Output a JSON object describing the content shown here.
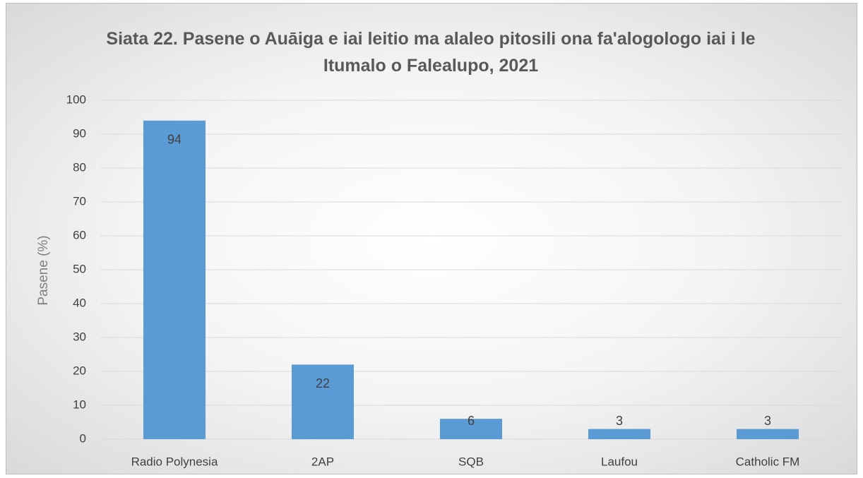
{
  "chart_data": {
    "type": "bar",
    "title": "Siata 22. Pasene o Auāiga e iai leitio ma alaleo pitosili ona fa'alogologo iai i le Itumalo o Falealupo, 2021",
    "y_axis_label": "Pasene (%)",
    "categories": [
      "Radio Polynesia",
      "2AP",
      "SQB",
      "Laufou",
      "Catholic FM"
    ],
    "values": [
      94,
      22,
      6,
      3,
      3
    ],
    "color": "#5b9bd5",
    "ylim": [
      0,
      100
    ],
    "yticks": [
      0,
      10,
      20,
      30,
      40,
      50,
      60,
      70,
      80,
      90,
      100
    ],
    "grid": true
  }
}
